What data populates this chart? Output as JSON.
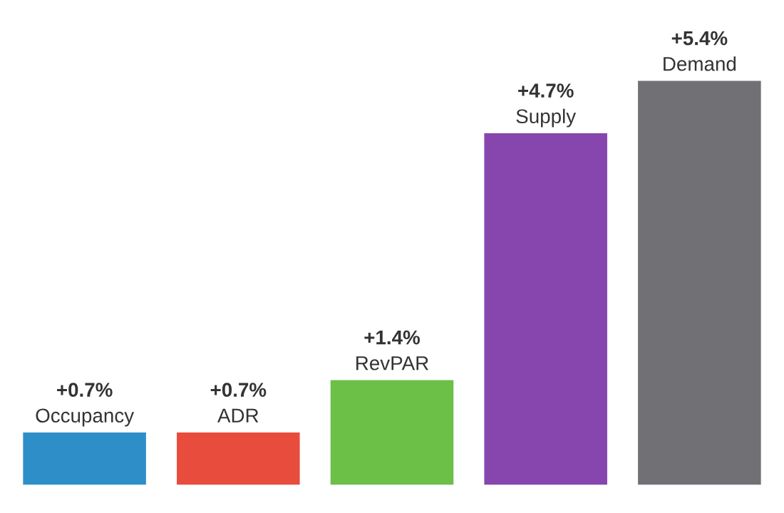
{
  "chart_data": {
    "type": "bar",
    "categories": [
      "Occupancy",
      "ADR",
      "RevPAR",
      "Supply",
      "Demand"
    ],
    "values": [
      0.7,
      0.7,
      1.4,
      4.7,
      5.4
    ],
    "value_labels": [
      "+0.7%",
      "+0.7%",
      "+1.4%",
      "+4.7%",
      "+5.4%"
    ],
    "colors": [
      "#2e8fc8",
      "#e84c3d",
      "#6cbf47",
      "#8646ad",
      "#717175"
    ]
  }
}
